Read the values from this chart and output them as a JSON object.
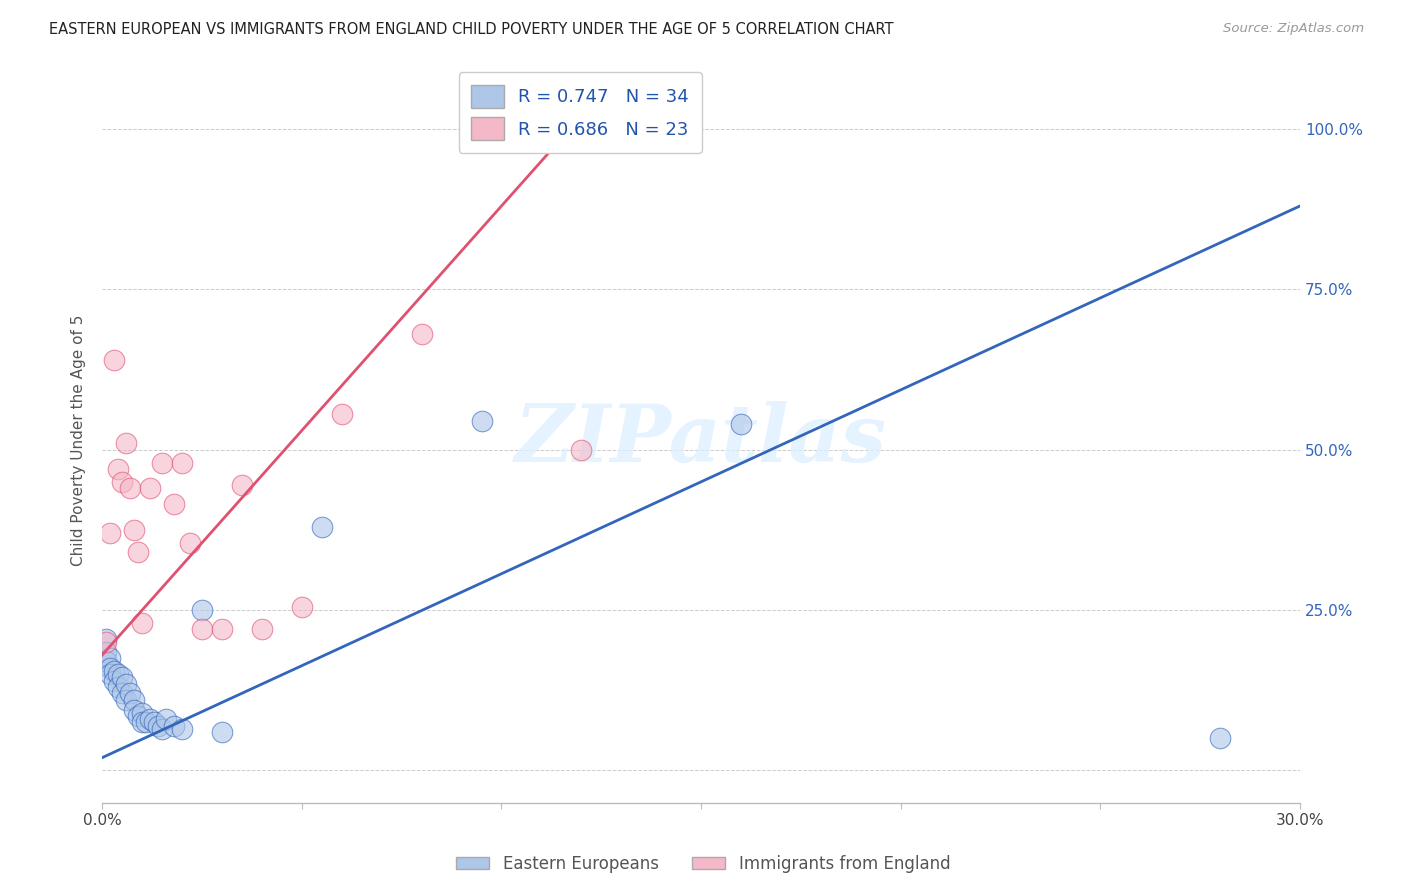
{
  "title": "EASTERN EUROPEAN VS IMMIGRANTS FROM ENGLAND CHILD POVERTY UNDER THE AGE OF 5 CORRELATION CHART",
  "source": "Source: ZipAtlas.com",
  "ylabel": "Child Poverty Under the Age of 5",
  "legend_label1": "Eastern Europeans",
  "legend_label2": "Immigrants from England",
  "R1": 0.747,
  "N1": 34,
  "R2": 0.686,
  "N2": 23,
  "color1": "#AEC6E8",
  "color2": "#F4B8C8",
  "line_color1": "#3366BB",
  "line_color2": "#E05070",
  "xlim": [
    0,
    0.3
  ],
  "ylim_low": -0.05,
  "ylim_high": 1.08,
  "watermark": "ZIPatlas",
  "blue_x": [
    0.001,
    0.001,
    0.001,
    0.002,
    0.002,
    0.002,
    0.003,
    0.003,
    0.004,
    0.004,
    0.005,
    0.005,
    0.006,
    0.006,
    0.007,
    0.008,
    0.008,
    0.009,
    0.01,
    0.01,
    0.011,
    0.012,
    0.013,
    0.014,
    0.015,
    0.016,
    0.018,
    0.02,
    0.025,
    0.03,
    0.055,
    0.095,
    0.16,
    0.28
  ],
  "blue_y": [
    0.205,
    0.185,
    0.17,
    0.175,
    0.16,
    0.15,
    0.155,
    0.14,
    0.15,
    0.13,
    0.145,
    0.12,
    0.135,
    0.11,
    0.12,
    0.11,
    0.095,
    0.085,
    0.09,
    0.075,
    0.075,
    0.08,
    0.075,
    0.07,
    0.065,
    0.08,
    0.07,
    0.065,
    0.25,
    0.06,
    0.38,
    0.545,
    0.54,
    0.05
  ],
  "pink_x": [
    0.001,
    0.002,
    0.003,
    0.004,
    0.005,
    0.006,
    0.007,
    0.008,
    0.009,
    0.01,
    0.012,
    0.015,
    0.018,
    0.02,
    0.022,
    0.025,
    0.03,
    0.035,
    0.04,
    0.05,
    0.06,
    0.08,
    0.12
  ],
  "pink_y": [
    0.2,
    0.37,
    0.64,
    0.47,
    0.45,
    0.51,
    0.44,
    0.375,
    0.34,
    0.23,
    0.44,
    0.48,
    0.415,
    0.48,
    0.355,
    0.22,
    0.22,
    0.445,
    0.22,
    0.255,
    0.555,
    0.68,
    0.5
  ],
  "blue_line_x0": 0.0,
  "blue_line_y0": 0.02,
  "blue_line_x1": 0.3,
  "blue_line_y1": 0.88,
  "pink_line_x0": 0.0,
  "pink_line_y0": 0.18,
  "pink_line_x1": 0.12,
  "pink_line_y1": 1.02,
  "dot_size": 220
}
